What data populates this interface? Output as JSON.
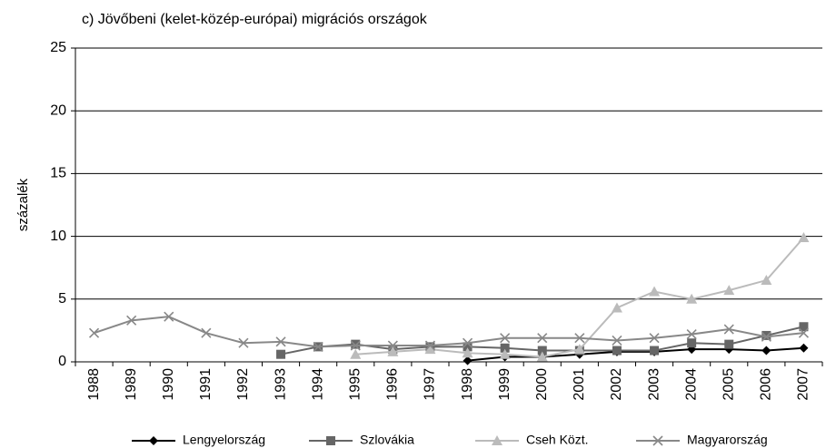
{
  "chart_data": {
    "type": "line",
    "title": "c) Jövőbeni (kelet-közép-európai) migrációs országok",
    "y_label": "százalék",
    "categories": [
      "1988",
      "1989",
      "1990",
      "1991",
      "1992",
      "1993",
      "1994",
      "1995",
      "1996",
      "1997",
      "1998",
      "1999",
      "2000",
      "2001",
      "2002",
      "2003",
      "2004",
      "2005",
      "2006",
      "2007"
    ],
    "series": [
      {
        "name": "Lengyelország",
        "color": "#000000",
        "marker": "diamond",
        "values": [
          null,
          null,
          null,
          null,
          null,
          null,
          null,
          null,
          null,
          null,
          0.1,
          0.4,
          0.4,
          0.6,
          0.8,
          0.8,
          1.0,
          1.0,
          0.9,
          1.1
        ]
      },
      {
        "name": "Szlovákia",
        "color": "#666666",
        "marker": "square",
        "values": [
          null,
          null,
          null,
          null,
          null,
          0.6,
          1.2,
          1.4,
          1.0,
          1.2,
          1.2,
          1.1,
          0.9,
          0.9,
          0.9,
          0.9,
          1.5,
          1.4,
          2.1,
          2.8
        ]
      },
      {
        "name": "Cseh Közt.",
        "color": "#bbbbbb",
        "marker": "triangle",
        "values": [
          null,
          null,
          null,
          null,
          null,
          null,
          null,
          0.6,
          0.8,
          1.0,
          0.7,
          0.6,
          0.4,
          1.0,
          4.3,
          5.6,
          5.0,
          5.7,
          6.5,
          9.9
        ]
      },
      {
        "name": "Magyarország",
        "color": "#888888",
        "marker": "x",
        "values": [
          2.3,
          3.3,
          3.6,
          2.3,
          1.5,
          1.6,
          1.2,
          1.3,
          1.3,
          1.3,
          1.5,
          1.9,
          1.9,
          1.9,
          1.7,
          1.9,
          2.2,
          2.6,
          2.0,
          2.3
        ]
      }
    ],
    "ylim": [
      0,
      25
    ],
    "yticks": [
      0,
      5,
      10,
      15,
      20,
      25
    ],
    "grid": true
  }
}
